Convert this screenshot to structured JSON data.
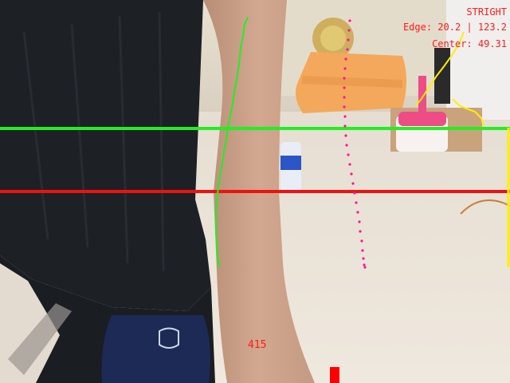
{
  "hud": {
    "mode": "STRIGHT",
    "edge": "Edge: 20.2 | 123.2",
    "center": "Center: 49.31",
    "distance": "415"
  },
  "colors": {
    "reference_line_upper": "#22ee22",
    "reference_line_lower": "#ee1111",
    "left_edge_trace": "#22ee22",
    "right_edge_trace": "#ffee00",
    "center_trace": "#ff1493",
    "overlay_text": "#ff1a1a"
  }
}
